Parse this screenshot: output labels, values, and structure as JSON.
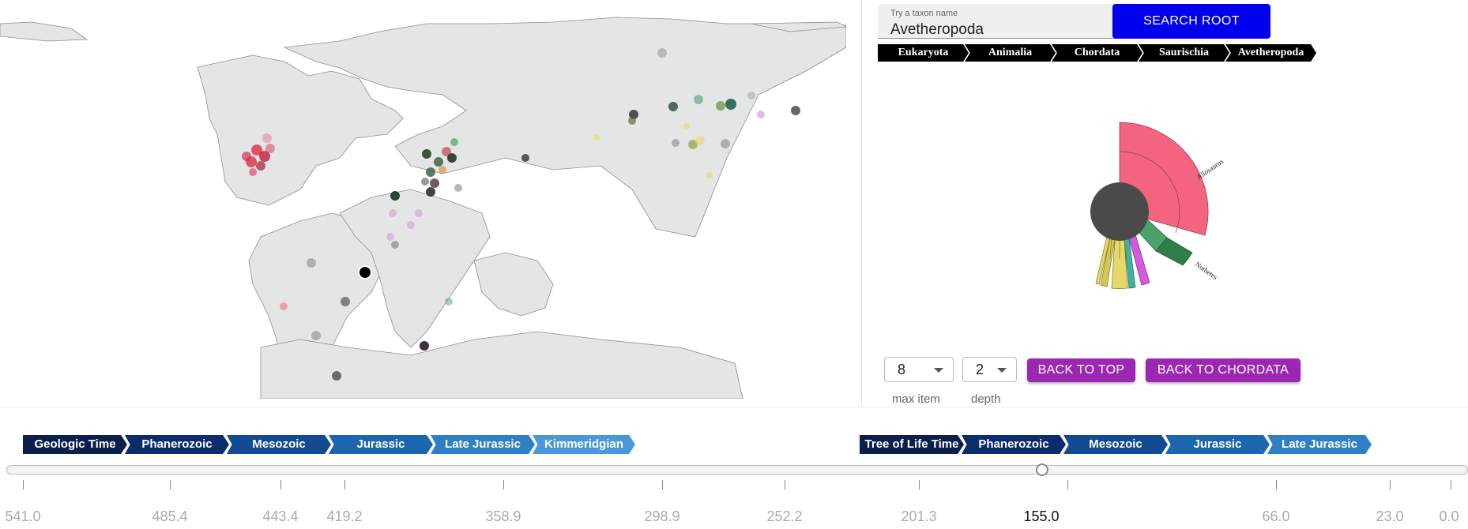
{
  "search": {
    "label": "Try a taxon name",
    "value": "Avetheropoda",
    "button_label": "SEARCH ROOT"
  },
  "taxon_breadcrumb": [
    "Eukaryota",
    "Animalia",
    "Chordata",
    "Saurischia",
    "Avetheropoda"
  ],
  "sunburst": {
    "labels": [
      "Allosaurus",
      "Nuthetes"
    ],
    "colors": {
      "root": "#4a4a4a",
      "allosaurus": "#f4637f",
      "green": "#4aa36a",
      "yellow": "#e6d866",
      "magenta": "#d45be0",
      "teal": "#3fb39e",
      "dark-green": "#2e7d4a"
    }
  },
  "controls": {
    "max_item": {
      "value": "8",
      "caption": "max item"
    },
    "depth": {
      "value": "2",
      "caption": "depth"
    },
    "back_to_top_label": "BACK TO TOP",
    "back_to_chordata_label": "BACK TO CHORDATA"
  },
  "geologic_breadcrumb": [
    "Geologic Time",
    "Phanerozoic",
    "Mesozoic",
    "Jurassic",
    "Late Jurassic",
    "Kimmeridgian"
  ],
  "tree_breadcrumb": [
    "Tree of Life Time",
    "Phanerozoic",
    "Mesozoic",
    "Jurassic",
    "Late Jurassic"
  ],
  "timeline": {
    "ticks": [
      "541.0",
      "485.4",
      "443.4",
      "419.2",
      "358.9",
      "298.9",
      "252.2",
      "201.3",
      "155.0",
      "66.0",
      "23.0",
      "0.0"
    ],
    "selected": "155.0"
  },
  "colors": {
    "search_button": "#0000ee",
    "action_button": "#9c27b0",
    "breadcrumb_shades": [
      "#0b1f4d",
      "#0d2c6b",
      "#124a94",
      "#1c66b0",
      "#2f7fc4",
      "#4a98d8"
    ]
  }
}
